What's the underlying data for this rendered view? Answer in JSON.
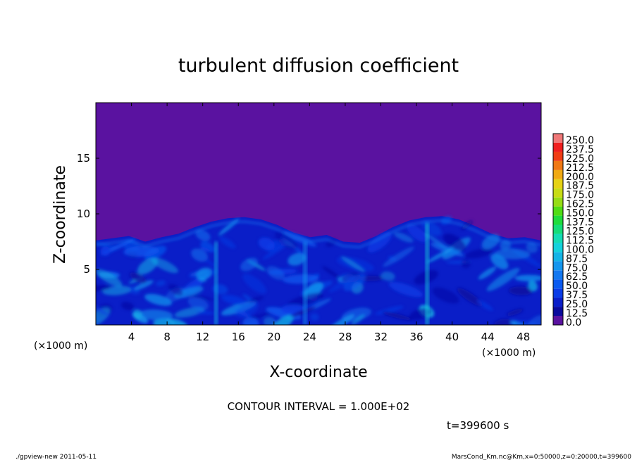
{
  "chart_data": {
    "type": "heatmap",
    "title": "turbulent diffusion coefficient",
    "xlabel": "X-coordinate",
    "ylabel": "Z-coordinate",
    "x_scale_label": "(×1000 m)",
    "y_scale_label": "(×1000 m)",
    "xlim": [
      0,
      50
    ],
    "ylim": [
      0,
      20
    ],
    "xticks": [
      4,
      8,
      12,
      16,
      20,
      24,
      28,
      32,
      36,
      40,
      44,
      48
    ],
    "yticks": [
      5,
      10,
      15
    ],
    "contour_interval": "CONTOUR INTERVAL = 1.000E+02",
    "time_label": "t=399600 s",
    "footer_left": "./gpview-new  2011-05-11",
    "footer_right": "MarsCond_Km.nc@Km,x=0:50000,z=0:20000,t=399600",
    "colorbar": {
      "levels": [
        "0.0",
        "12.5",
        "25.0",
        "37.5",
        "50.0",
        "62.5",
        "75.0",
        "87.5",
        "100.0",
        "112.5",
        "125.0",
        "137.5",
        "150.0",
        "162.5",
        "175.0",
        "187.5",
        "200.0",
        "212.5",
        "225.0",
        "237.5",
        "250.0"
      ],
      "colors": [
        "#5a12a0",
        "#0a0a9c",
        "#0a1ec8",
        "#0a3ce6",
        "#0a5af0",
        "#1478f0",
        "#1496ee",
        "#14b4e6",
        "#14d2dc",
        "#14dcb4",
        "#14dc78",
        "#1edc3c",
        "#50dc14",
        "#96dc14",
        "#c8dc14",
        "#e6d214",
        "#f0aa14",
        "#f07814",
        "#f03c14",
        "#f01e1e",
        "#f07878"
      ]
    },
    "background_color": "#5a12a0",
    "boundary_layer_top_km": [
      7.6,
      7.8,
      8.0,
      7.5,
      7.9,
      8.2,
      8.8,
      9.3,
      9.6,
      9.7,
      9.5,
      9.0,
      8.3,
      7.9,
      8.1,
      7.5,
      7.4,
      8.0,
      8.8,
      9.4,
      9.7,
      9.8,
      9.5,
      8.9,
      8.2,
      7.8,
      7.9,
      7.6
    ]
  }
}
